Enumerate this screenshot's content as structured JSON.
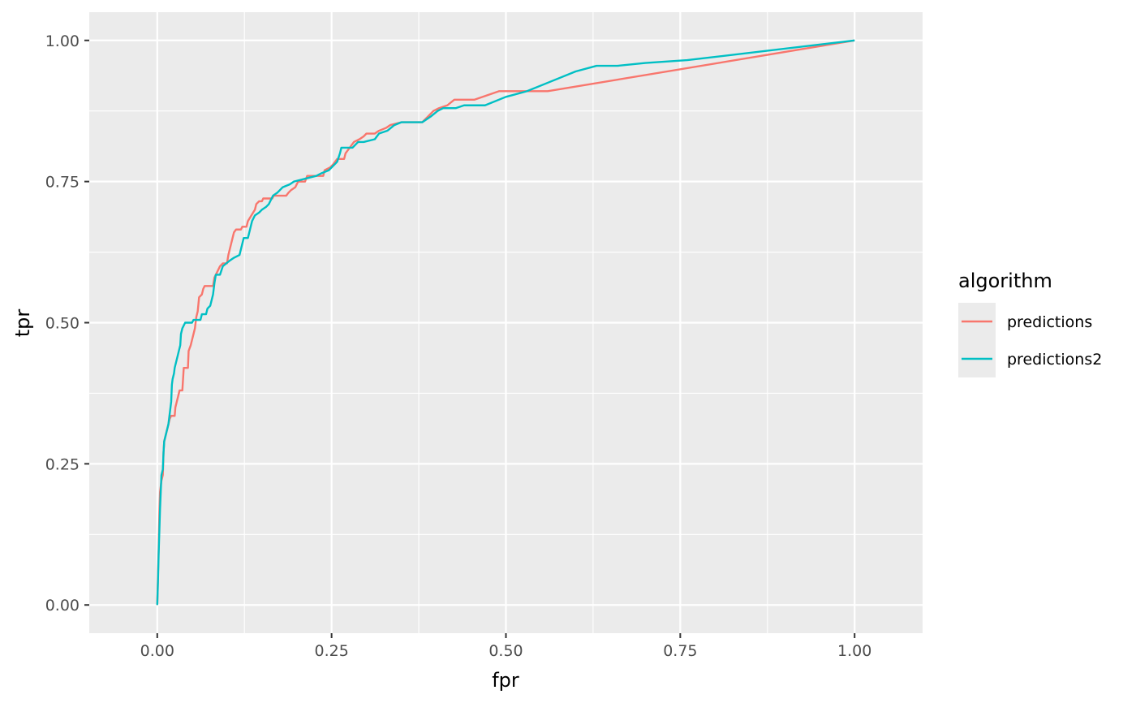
{
  "chart_data": {
    "type": "line",
    "title": "",
    "xlabel": "fpr",
    "ylabel": "tpr",
    "xlim": [
      -0.0975,
      1.0975
    ],
    "ylim": [
      -0.05,
      1.05
    ],
    "grid": true,
    "legend_position": "right",
    "legend_title": "algorithm",
    "x_ticks": [
      {
        "value": 0,
        "label": "0.00"
      },
      {
        "value": 0.25,
        "label": "0.25"
      },
      {
        "value": 0.5,
        "label": "0.50"
      },
      {
        "value": 0.75,
        "label": "0.75"
      },
      {
        "value": 1,
        "label": "1.00"
      }
    ],
    "y_ticks": [
      {
        "value": 0,
        "label": "0.00"
      },
      {
        "value": 0.25,
        "label": "0.25"
      },
      {
        "value": 0.5,
        "label": "0.50"
      },
      {
        "value": 0.75,
        "label": "0.75"
      },
      {
        "value": 1,
        "label": "1.00"
      }
    ],
    "series": [
      {
        "name": "predictions",
        "color": "#F8766D",
        "points": [
          [
            0.0,
            0.0
          ],
          [
            0.001,
            0.05
          ],
          [
            0.002,
            0.1
          ],
          [
            0.003,
            0.16
          ],
          [
            0.004,
            0.2
          ],
          [
            0.006,
            0.22
          ],
          [
            0.008,
            0.23
          ],
          [
            0.009,
            0.27
          ],
          [
            0.01,
            0.29
          ],
          [
            0.012,
            0.3
          ],
          [
            0.014,
            0.31
          ],
          [
            0.016,
            0.32
          ],
          [
            0.018,
            0.33
          ],
          [
            0.02,
            0.335
          ],
          [
            0.025,
            0.335
          ],
          [
            0.026,
            0.35
          ],
          [
            0.028,
            0.36
          ],
          [
            0.03,
            0.37
          ],
          [
            0.032,
            0.38
          ],
          [
            0.036,
            0.38
          ],
          [
            0.038,
            0.42
          ],
          [
            0.044,
            0.42
          ],
          [
            0.045,
            0.45
          ],
          [
            0.048,
            0.46
          ],
          [
            0.05,
            0.47
          ],
          [
            0.052,
            0.48
          ],
          [
            0.054,
            0.49
          ],
          [
            0.056,
            0.51
          ],
          [
            0.058,
            0.52
          ],
          [
            0.06,
            0.545
          ],
          [
            0.064,
            0.55
          ],
          [
            0.066,
            0.56
          ],
          [
            0.068,
            0.565
          ],
          [
            0.08,
            0.565
          ],
          [
            0.082,
            0.58
          ],
          [
            0.086,
            0.59
          ],
          [
            0.09,
            0.6
          ],
          [
            0.094,
            0.605
          ],
          [
            0.1,
            0.605
          ],
          [
            0.102,
            0.62
          ],
          [
            0.104,
            0.63
          ],
          [
            0.106,
            0.64
          ],
          [
            0.108,
            0.65
          ],
          [
            0.11,
            0.66
          ],
          [
            0.113,
            0.665
          ],
          [
            0.12,
            0.665
          ],
          [
            0.122,
            0.67
          ],
          [
            0.128,
            0.67
          ],
          [
            0.13,
            0.68
          ],
          [
            0.135,
            0.69
          ],
          [
            0.14,
            0.7
          ],
          [
            0.142,
            0.71
          ],
          [
            0.146,
            0.715
          ],
          [
            0.15,
            0.715
          ],
          [
            0.152,
            0.72
          ],
          [
            0.165,
            0.72
          ],
          [
            0.167,
            0.725
          ],
          [
            0.185,
            0.725
          ],
          [
            0.188,
            0.73
          ],
          [
            0.192,
            0.735
          ],
          [
            0.198,
            0.74
          ],
          [
            0.202,
            0.75
          ],
          [
            0.212,
            0.75
          ],
          [
            0.215,
            0.76
          ],
          [
            0.238,
            0.76
          ],
          [
            0.24,
            0.77
          ],
          [
            0.248,
            0.775
          ],
          [
            0.252,
            0.78
          ],
          [
            0.258,
            0.79
          ],
          [
            0.268,
            0.79
          ],
          [
            0.27,
            0.8
          ],
          [
            0.276,
            0.81
          ],
          [
            0.282,
            0.82
          ],
          [
            0.29,
            0.825
          ],
          [
            0.296,
            0.83
          ],
          [
            0.3,
            0.835
          ],
          [
            0.312,
            0.835
          ],
          [
            0.318,
            0.84
          ],
          [
            0.328,
            0.845
          ],
          [
            0.334,
            0.85
          ],
          [
            0.35,
            0.855
          ],
          [
            0.38,
            0.855
          ],
          [
            0.388,
            0.865
          ],
          [
            0.396,
            0.875
          ],
          [
            0.404,
            0.88
          ],
          [
            0.416,
            0.885
          ],
          [
            0.426,
            0.895
          ],
          [
            0.455,
            0.895
          ],
          [
            0.49,
            0.91
          ],
          [
            0.53,
            0.91
          ],
          [
            0.56,
            0.91
          ],
          [
            1.0,
            1.0
          ]
        ]
      },
      {
        "name": "predictions2",
        "color": "#00BFC4",
        "points": [
          [
            0.0,
            0.0
          ],
          [
            0.001,
            0.04
          ],
          [
            0.002,
            0.09
          ],
          [
            0.003,
            0.13
          ],
          [
            0.004,
            0.17
          ],
          [
            0.005,
            0.2
          ],
          [
            0.006,
            0.23
          ],
          [
            0.008,
            0.24
          ],
          [
            0.009,
            0.27
          ],
          [
            0.01,
            0.29
          ],
          [
            0.012,
            0.3
          ],
          [
            0.014,
            0.31
          ],
          [
            0.016,
            0.32
          ],
          [
            0.018,
            0.34
          ],
          [
            0.019,
            0.35
          ],
          [
            0.02,
            0.36
          ],
          [
            0.021,
            0.39
          ],
          [
            0.022,
            0.4
          ],
          [
            0.024,
            0.41
          ],
          [
            0.025,
            0.42
          ],
          [
            0.027,
            0.43
          ],
          [
            0.029,
            0.44
          ],
          [
            0.031,
            0.45
          ],
          [
            0.033,
            0.46
          ],
          [
            0.034,
            0.48
          ],
          [
            0.036,
            0.49
          ],
          [
            0.038,
            0.495
          ],
          [
            0.04,
            0.5
          ],
          [
            0.05,
            0.5
          ],
          [
            0.052,
            0.505
          ],
          [
            0.062,
            0.505
          ],
          [
            0.064,
            0.515
          ],
          [
            0.07,
            0.515
          ],
          [
            0.072,
            0.525
          ],
          [
            0.076,
            0.53
          ],
          [
            0.078,
            0.54
          ],
          [
            0.08,
            0.55
          ],
          [
            0.082,
            0.57
          ],
          [
            0.084,
            0.585
          ],
          [
            0.09,
            0.585
          ],
          [
            0.094,
            0.6
          ],
          [
            0.104,
            0.61
          ],
          [
            0.11,
            0.615
          ],
          [
            0.118,
            0.62
          ],
          [
            0.122,
            0.64
          ],
          [
            0.124,
            0.65
          ],
          [
            0.13,
            0.65
          ],
          [
            0.132,
            0.66
          ],
          [
            0.134,
            0.67
          ],
          [
            0.136,
            0.68
          ],
          [
            0.14,
            0.69
          ],
          [
            0.146,
            0.695
          ],
          [
            0.15,
            0.7
          ],
          [
            0.156,
            0.705
          ],
          [
            0.16,
            0.71
          ],
          [
            0.166,
            0.725
          ],
          [
            0.172,
            0.73
          ],
          [
            0.18,
            0.74
          ],
          [
            0.19,
            0.745
          ],
          [
            0.196,
            0.75
          ],
          [
            0.212,
            0.755
          ],
          [
            0.228,
            0.76
          ],
          [
            0.236,
            0.765
          ],
          [
            0.246,
            0.77
          ],
          [
            0.258,
            0.785
          ],
          [
            0.262,
            0.8
          ],
          [
            0.264,
            0.81
          ],
          [
            0.272,
            0.81
          ],
          [
            0.28,
            0.81
          ],
          [
            0.288,
            0.82
          ],
          [
            0.296,
            0.82
          ],
          [
            0.312,
            0.825
          ],
          [
            0.318,
            0.835
          ],
          [
            0.33,
            0.84
          ],
          [
            0.34,
            0.85
          ],
          [
            0.35,
            0.855
          ],
          [
            0.37,
            0.855
          ],
          [
            0.38,
            0.855
          ],
          [
            0.392,
            0.865
          ],
          [
            0.402,
            0.875
          ],
          [
            0.41,
            0.88
          ],
          [
            0.428,
            0.88
          ],
          [
            0.44,
            0.885
          ],
          [
            0.47,
            0.885
          ],
          [
            0.5,
            0.9
          ],
          [
            0.53,
            0.91
          ],
          [
            0.56,
            0.925
          ],
          [
            0.6,
            0.945
          ],
          [
            0.63,
            0.955
          ],
          [
            0.66,
            0.955
          ],
          [
            0.7,
            0.96
          ],
          [
            0.76,
            0.965
          ],
          [
            1.0,
            1.0
          ]
        ]
      }
    ]
  }
}
